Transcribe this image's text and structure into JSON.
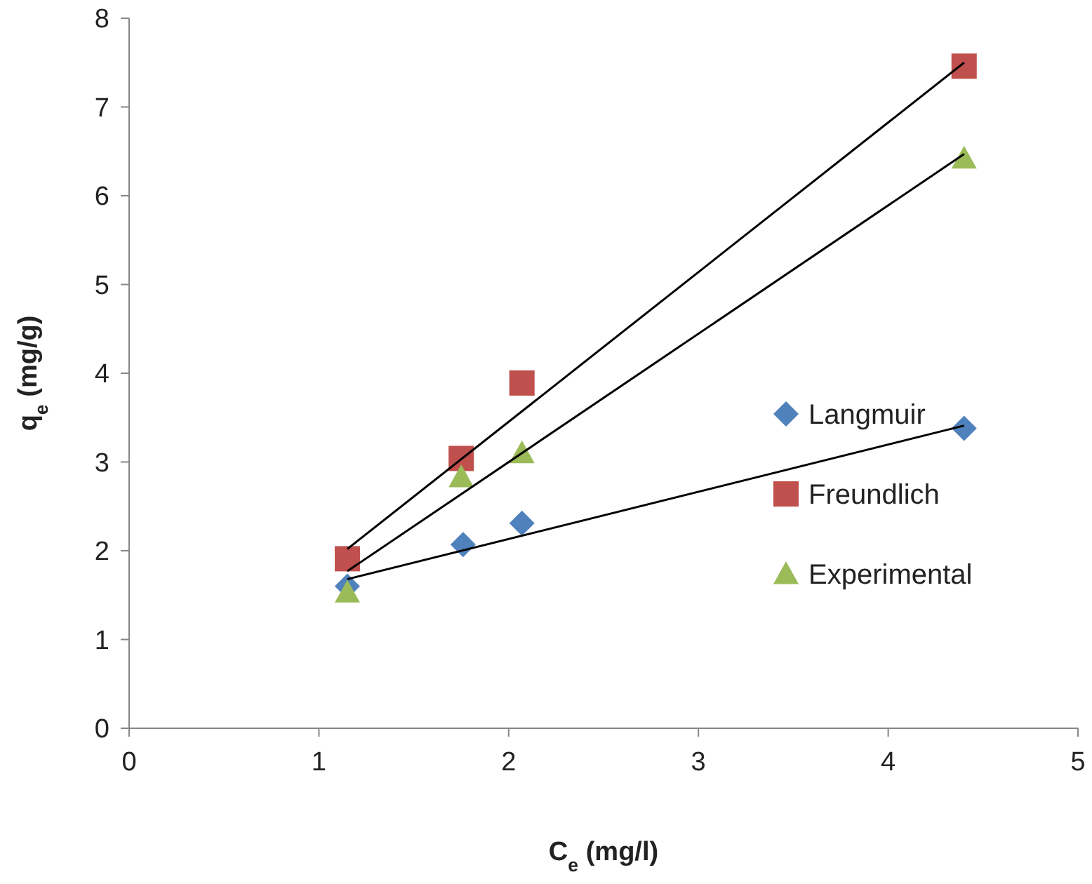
{
  "chart_data": {
    "type": "scatter",
    "xlabel": "C$_{e}$ (mg/l)",
    "ylabel": "q$_{e}$ (mg/g)",
    "xlim": [
      0,
      5
    ],
    "ylim": [
      0,
      8
    ],
    "xticks": [
      0,
      1,
      2,
      3,
      4,
      5
    ],
    "yticks": [
      0,
      1,
      2,
      3,
      4,
      5,
      6,
      7,
      8
    ],
    "grid": false,
    "legend": "right",
    "series": [
      {
        "name": "Langmuir",
        "color": "#4f81bd",
        "marker": "diamond",
        "x": [
          1.15,
          1.76,
          2.07,
          4.4
        ],
        "values": [
          1.6,
          2.07,
          2.31,
          3.38
        ]
      },
      {
        "name": "Freundlich",
        "color": "#c0504d",
        "marker": "square",
        "x": [
          1.15,
          1.75,
          2.07,
          4.4
        ],
        "values": [
          1.91,
          3.04,
          3.89,
          7.46
        ]
      },
      {
        "name": "Experimental",
        "color": "#9bbb59",
        "marker": "triangle",
        "x": [
          1.15,
          1.75,
          2.07,
          4.4
        ],
        "values": [
          1.53,
          2.83,
          3.1,
          6.42
        ]
      },
      {
        "type": "line",
        "color": "#000000",
        "marker": "none",
        "x": [
          1.15,
          4.4
        ],
        "values": [
          1.68,
          3.41
        ]
      },
      {
        "type": "line",
        "color": "#000000",
        "marker": "none",
        "x": [
          1.15,
          4.4
        ],
        "values": [
          2.02,
          7.5
        ]
      },
      {
        "type": "line",
        "color": "#000000",
        "marker": "none",
        "x": [
          1.15,
          4.4
        ],
        "values": [
          1.77,
          6.47
        ]
      }
    ]
  }
}
